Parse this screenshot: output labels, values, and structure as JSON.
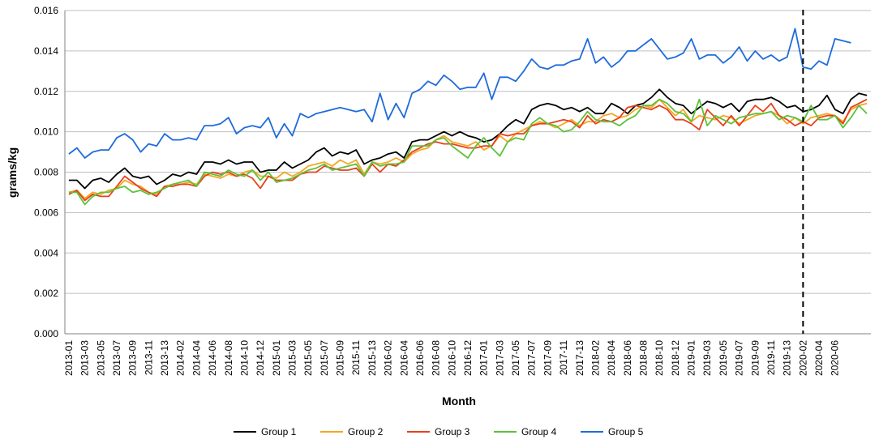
{
  "chart_data": {
    "type": "line",
    "xlabel": "Month",
    "ylabel": "grams/kg",
    "ylim": [
      0,
      0.016
    ],
    "yticks": [
      "0.000",
      "0.002",
      "0.004",
      "0.006",
      "0.008",
      "0.010",
      "0.012",
      "0.014",
      "0.016"
    ],
    "grid": "horizontal",
    "legend_position": "bottom",
    "x_tick_labels": [
      "2013-01",
      "2013-03",
      "2013-05",
      "2013-07",
      "2013-09",
      "2013-11",
      "2013-13",
      "2014-02",
      "2014-04",
      "2014-06",
      "2014-08",
      "2014-10",
      "2014-12",
      "2015-01",
      "2015-03",
      "2015-05",
      "2015-07",
      "2015-09",
      "2015-11",
      "2015-13",
      "2016-02",
      "2016-04",
      "2016-06",
      "2016-08",
      "2016-10",
      "2016-12",
      "2017-01",
      "2017-03",
      "2017-05",
      "2017-07",
      "2017-09",
      "2017-11",
      "2017-13",
      "2018-02",
      "2018-04",
      "2018-06",
      "2018-08",
      "2018-10",
      "2018-12",
      "2019-01",
      "2019-03",
      "2019-05",
      "2019-07",
      "2019-09",
      "2019-11",
      "2019-13",
      "2020-02",
      "2020-04",
      "2020-06"
    ],
    "dashed_marker_at": "2020-02",
    "series": [
      {
        "name": "Group 1",
        "color": "#000000",
        "values": [
          0.0076,
          0.0076,
          0.0072,
          0.0076,
          0.0077,
          0.0075,
          0.0079,
          0.0082,
          0.0078,
          0.0077,
          0.0078,
          0.0074,
          0.0076,
          0.0079,
          0.0078,
          0.008,
          0.0079,
          0.0085,
          0.0085,
          0.0084,
          0.0086,
          0.0084,
          0.0085,
          0.0085,
          0.008,
          0.0081,
          0.0081,
          0.0085,
          0.0082,
          0.0084,
          0.0086,
          0.009,
          0.0092,
          0.0088,
          0.009,
          0.0089,
          0.0091,
          0.0084,
          0.0086,
          0.0087,
          0.0089,
          0.009,
          0.0087,
          0.0095,
          0.0096,
          0.0096,
          0.0098,
          0.01,
          0.0098,
          0.01,
          0.0098,
          0.0097,
          0.0095,
          0.0096,
          0.0099,
          0.0103,
          0.0106,
          0.0104,
          0.0111,
          0.0113,
          0.0114,
          0.0113,
          0.0111,
          0.0112,
          0.011,
          0.0112,
          0.0109,
          0.0109,
          0.0114,
          0.0112,
          0.0109,
          0.0113,
          0.0114,
          0.0117,
          0.0121,
          0.0117,
          0.0114,
          0.0113,
          0.0109,
          0.0112,
          0.0115,
          0.0114,
          0.0112,
          0.0114,
          0.011,
          0.0115,
          0.0116,
          0.0116,
          0.0117,
          0.0115,
          0.0112,
          0.0113,
          0.011,
          0.0111,
          0.0113,
          0.0118,
          0.0111,
          0.0109,
          0.0116,
          0.0119,
          0.0118
        ]
      },
      {
        "name": "Group 2",
        "color": "#f5a623",
        "values": [
          0.007,
          0.0071,
          0.0067,
          0.007,
          0.0069,
          0.0071,
          0.0072,
          0.0076,
          0.0074,
          0.0073,
          0.007,
          0.0069,
          0.0073,
          0.0074,
          0.0074,
          0.0075,
          0.0074,
          0.0079,
          0.0078,
          0.0077,
          0.0079,
          0.0078,
          0.008,
          0.0081,
          0.0078,
          0.0078,
          0.0077,
          0.008,
          0.0078,
          0.008,
          0.0083,
          0.0084,
          0.0085,
          0.0083,
          0.0086,
          0.0084,
          0.0086,
          0.0079,
          0.0085,
          0.0084,
          0.0085,
          0.0087,
          0.0085,
          0.0089,
          0.0091,
          0.0092,
          0.0096,
          0.0098,
          0.0095,
          0.0094,
          0.0093,
          0.0095,
          0.0091,
          0.0093,
          0.0098,
          0.0095,
          0.0099,
          0.0101,
          0.0103,
          0.0105,
          0.0104,
          0.0102,
          0.0104,
          0.0106,
          0.0103,
          0.0105,
          0.0105,
          0.0108,
          0.0109,
          0.0107,
          0.0108,
          0.0111,
          0.0113,
          0.0112,
          0.0116,
          0.0112,
          0.0108,
          0.0111,
          0.0105,
          0.0108,
          0.0107,
          0.0106,
          0.0108,
          0.0107,
          0.0104,
          0.0106,
          0.0108,
          0.0109,
          0.011,
          0.0108,
          0.0104,
          0.0107,
          0.0104,
          0.0107,
          0.0108,
          0.0109,
          0.0108,
          0.0105,
          0.0111,
          0.0113,
          0.0114
        ]
      },
      {
        "name": "Group 3",
        "color": "#e8401c",
        "values": [
          0.0069,
          0.0071,
          0.0066,
          0.0069,
          0.0068,
          0.0068,
          0.0073,
          0.0078,
          0.0075,
          0.0072,
          0.007,
          0.0068,
          0.0073,
          0.0073,
          0.0074,
          0.0074,
          0.0073,
          0.0078,
          0.008,
          0.0079,
          0.008,
          0.0078,
          0.0079,
          0.0077,
          0.0072,
          0.0078,
          0.0076,
          0.0076,
          0.0076,
          0.0079,
          0.008,
          0.008,
          0.0083,
          0.0082,
          0.0081,
          0.0081,
          0.0082,
          0.0078,
          0.0084,
          0.008,
          0.0084,
          0.0083,
          0.0086,
          0.009,
          0.0092,
          0.0094,
          0.0095,
          0.0094,
          0.0094,
          0.0093,
          0.0092,
          0.0092,
          0.0093,
          0.0093,
          0.0099,
          0.0098,
          0.0099,
          0.0099,
          0.0103,
          0.0104,
          0.0104,
          0.0105,
          0.0106,
          0.0105,
          0.0102,
          0.0108,
          0.0104,
          0.0106,
          0.0105,
          0.0107,
          0.0112,
          0.0113,
          0.0112,
          0.0111,
          0.0113,
          0.0111,
          0.0106,
          0.0106,
          0.0104,
          0.0101,
          0.0111,
          0.0107,
          0.0103,
          0.0108,
          0.0103,
          0.0108,
          0.0113,
          0.011,
          0.0114,
          0.0108,
          0.0106,
          0.0103,
          0.0105,
          0.0103,
          0.0107,
          0.0108,
          0.0108,
          0.0104,
          0.0112,
          0.0114,
          0.0116
        ]
      },
      {
        "name": "Group 4",
        "color": "#5cc23a",
        "values": [
          0.007,
          0.007,
          0.0064,
          0.0068,
          0.007,
          0.007,
          0.0072,
          0.0073,
          0.007,
          0.0071,
          0.0069,
          0.007,
          0.0072,
          0.0074,
          0.0075,
          0.0076,
          0.0073,
          0.008,
          0.0079,
          0.0078,
          0.0081,
          0.0079,
          0.0078,
          0.0081,
          0.0076,
          0.008,
          0.0075,
          0.0076,
          0.0077,
          0.0079,
          0.0081,
          0.0082,
          0.0084,
          0.0081,
          0.0082,
          0.0083,
          0.0084,
          0.0078,
          0.0085,
          0.0083,
          0.0084,
          0.0084,
          0.0085,
          0.0093,
          0.0093,
          0.0093,
          0.0096,
          0.0097,
          0.0093,
          0.009,
          0.0087,
          0.0093,
          0.0097,
          0.0092,
          0.0088,
          0.0095,
          0.0097,
          0.0096,
          0.0104,
          0.0107,
          0.0104,
          0.0103,
          0.01,
          0.0101,
          0.0105,
          0.011,
          0.0106,
          0.0105,
          0.0105,
          0.0103,
          0.0106,
          0.0108,
          0.0113,
          0.0113,
          0.0116,
          0.0114,
          0.011,
          0.0109,
          0.0105,
          0.0116,
          0.0103,
          0.0108,
          0.0106,
          0.0104,
          0.0107,
          0.0108,
          0.0109,
          0.0109,
          0.011,
          0.0106,
          0.0108,
          0.0107,
          0.0105,
          0.0113,
          0.0106,
          0.0106,
          0.0108,
          0.0102,
          0.0107,
          0.0113,
          0.0109
        ]
      },
      {
        "name": "Group 5",
        "color": "#1f6bdc",
        "values": [
          0.0089,
          0.0092,
          0.0087,
          0.009,
          0.0091,
          0.0091,
          0.0097,
          0.0099,
          0.0096,
          0.009,
          0.0094,
          0.0093,
          0.0099,
          0.0096,
          0.0096,
          0.0097,
          0.0096,
          0.0103,
          0.0103,
          0.0104,
          0.0107,
          0.0099,
          0.0102,
          0.0103,
          0.0102,
          0.0107,
          0.0097,
          0.0104,
          0.0098,
          0.0109,
          0.0107,
          0.0109,
          0.011,
          0.0111,
          0.0112,
          0.0111,
          0.011,
          0.0111,
          0.0105,
          0.0119,
          0.0106,
          0.0114,
          0.0107,
          0.0119,
          0.0121,
          0.0125,
          0.0123,
          0.0128,
          0.0125,
          0.0121,
          0.0122,
          0.0122,
          0.0129,
          0.0116,
          0.0127,
          0.0127,
          0.0125,
          0.013,
          0.0136,
          0.0132,
          0.0131,
          0.0133,
          0.0133,
          0.0135,
          0.0136,
          0.0146,
          0.0134,
          0.0137,
          0.0132,
          0.0135,
          0.014,
          0.014,
          0.0143,
          0.0146,
          0.0141,
          0.0136,
          0.0137,
          0.0139,
          0.0146,
          0.0136,
          0.0138,
          0.0138,
          0.0134,
          0.0137,
          0.0142,
          0.0135,
          0.014,
          0.0136,
          0.0138,
          0.0135,
          0.0137,
          0.0151,
          0.0132,
          0.0131,
          0.0135,
          0.0133,
          0.0146,
          0.0145,
          0.0144
        ]
      }
    ]
  }
}
